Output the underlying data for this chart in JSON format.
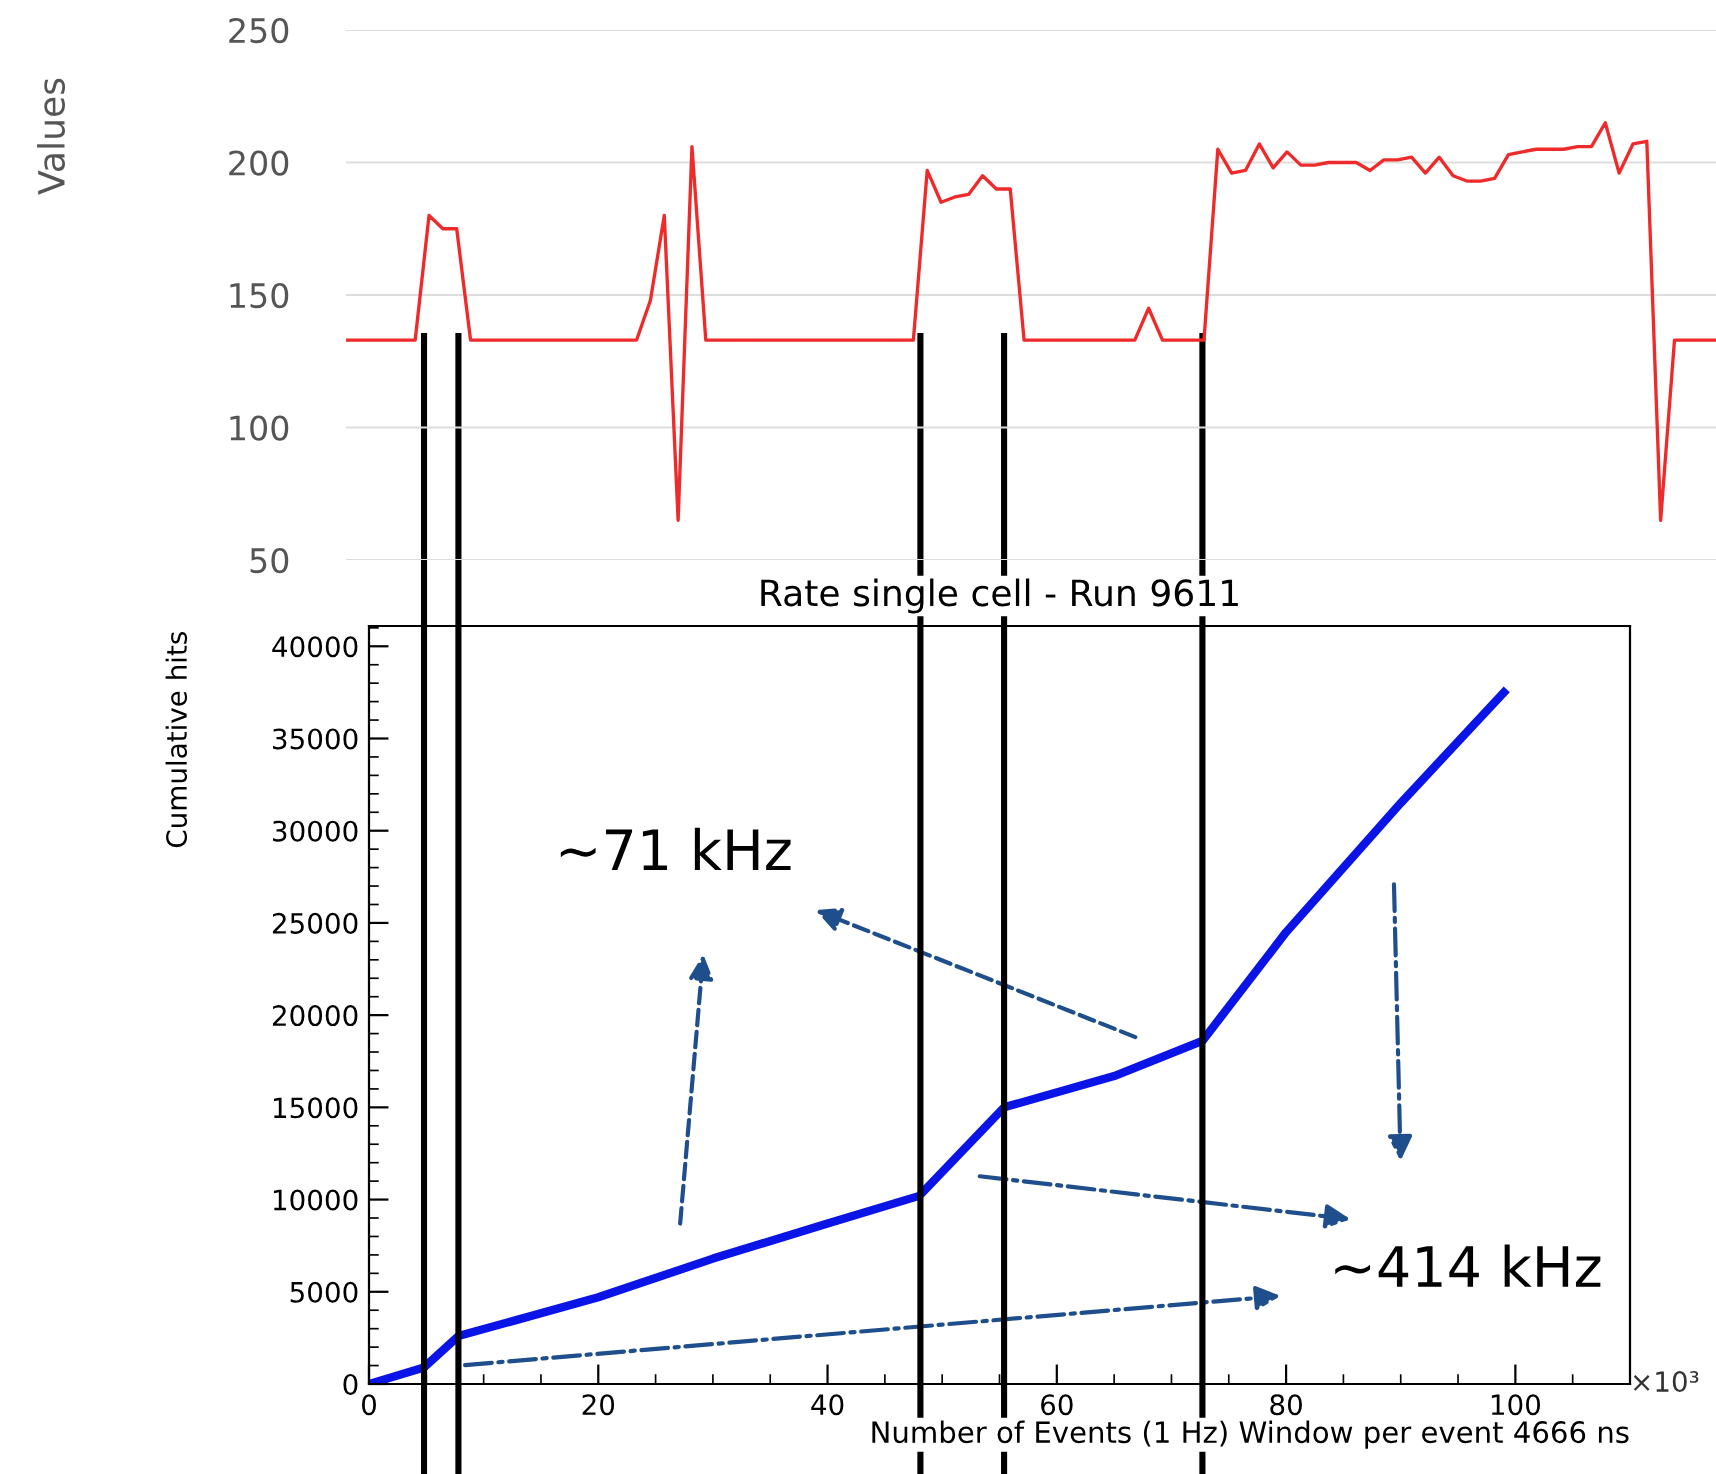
{
  "chart_data": [
    {
      "type": "line",
      "ylabel": "Values",
      "color": "#ee2a2a",
      "ylim": [
        50,
        250
      ],
      "yticks": [
        50,
        100,
        150,
        200,
        250
      ],
      "grid": "y",
      "tick_labels": "y",
      "categories": [
        null,
        null,
        null,
        null,
        null,
        null,
        null,
        null,
        null,
        null,
        null,
        null,
        null,
        null,
        null,
        null,
        null,
        null,
        null,
        null,
        null,
        null,
        null,
        null,
        null,
        null,
        null,
        null,
        null,
        null,
        null,
        null,
        null,
        null,
        null,
        null,
        null,
        null,
        null,
        null,
        null,
        null,
        null,
        null,
        null,
        null,
        null,
        null,
        null,
        null,
        null,
        null,
        null,
        null,
        null,
        null,
        null,
        null,
        null,
        null,
        null,
        null,
        null,
        null,
        null,
        null,
        null,
        null,
        null,
        null,
        null,
        null,
        null,
        null,
        null,
        null,
        null,
        null,
        null,
        null,
        null,
        null,
        null,
        null,
        null,
        null,
        null,
        null,
        null,
        null,
        null,
        null,
        null,
        null,
        null,
        null,
        null,
        null,
        null,
        null
      ],
      "values": [
        133,
        133,
        133,
        133,
        133,
        133,
        180,
        175,
        175,
        133,
        133,
        133,
        133,
        133,
        133,
        133,
        133,
        133,
        133,
        133,
        133,
        133,
        148,
        180,
        65,
        206,
        133,
        133,
        133,
        133,
        133,
        133,
        133,
        133,
        133,
        133,
        133,
        133,
        133,
        133,
        133,
        133,
        197,
        185,
        187,
        188,
        195,
        190,
        190,
        133,
        133,
        133,
        133,
        133,
        133,
        133,
        133,
        133,
        145,
        133,
        133,
        133,
        133,
        205,
        196,
        197,
        207,
        198,
        204,
        199,
        199,
        200,
        200,
        200,
        197,
        201,
        201,
        202,
        196,
        202,
        195,
        193,
        193,
        194,
        203,
        204,
        205,
        205,
        205,
        206,
        206,
        215,
        196,
        207,
        208,
        65,
        133,
        133,
        133,
        133
      ]
    },
    {
      "type": "line",
      "title": "Rate single cell - Run 9611",
      "xlabel": "Number of Events (1 Hz) Window per event 4666 ns",
      "ylabel": "Cumulative hits",
      "color": "#0a14e6",
      "x": [
        0,
        4.8,
        7.8,
        20,
        30,
        40,
        48,
        55.4,
        65,
        72.7,
        80,
        90,
        99
      ],
      "values": [
        0,
        900,
        2600,
        4700,
        6800,
        8700,
        10200,
        15000,
        16700,
        18600,
        24500,
        31500,
        37500
      ],
      "xlim": [
        0,
        110
      ],
      "xticks": [
        0,
        20,
        40,
        60,
        80,
        100
      ],
      "ylim": [
        0,
        41100
      ],
      "yticks": [
        0,
        5000,
        10000,
        15000,
        20000,
        25000,
        30000,
        35000,
        40000
      ],
      "grid": false,
      "annotations": [
        "~71 kHz",
        "~414 kHz",
        "×10³"
      ],
      "ref_lines": [
        {
          "axis": "x",
          "value": 4.8,
          "color": "#000000"
        },
        {
          "axis": "x",
          "value": 7.8,
          "color": "#000000"
        },
        {
          "axis": "x",
          "value": 48.1,
          "color": "#000000"
        },
        {
          "axis": "x",
          "value": 55.4,
          "color": "#000000"
        },
        {
          "axis": "x",
          "value": 72.7,
          "color": "#000000"
        }
      ]
    }
  ]
}
